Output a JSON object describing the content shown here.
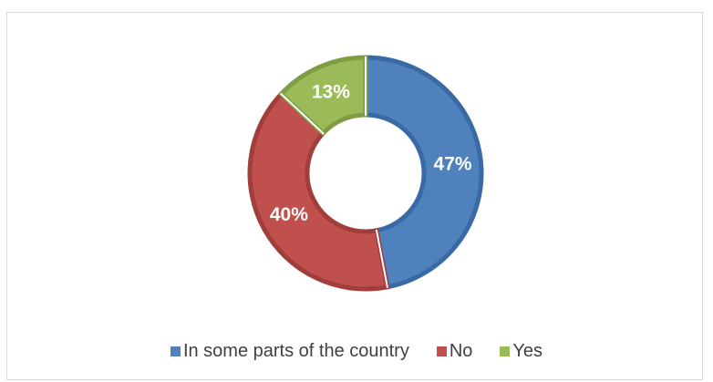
{
  "chart_data": {
    "type": "pie",
    "variant": "donut",
    "title": "",
    "slices": [
      {
        "label": "In some parts of the country",
        "value": 47,
        "display": "47%",
        "color": "#4f81bd",
        "edge_color": "#3a6aa6"
      },
      {
        "label": "No",
        "value": 40,
        "display": "40%",
        "color": "#c0504d",
        "edge_color": "#a03e3b"
      },
      {
        "label": "Yes",
        "value": 13,
        "display": "13%",
        "color": "#9bbb59",
        "edge_color": "#7f9e44"
      }
    ],
    "legend_position": "bottom",
    "start_angle_deg": 0,
    "direction": "clockwise"
  }
}
